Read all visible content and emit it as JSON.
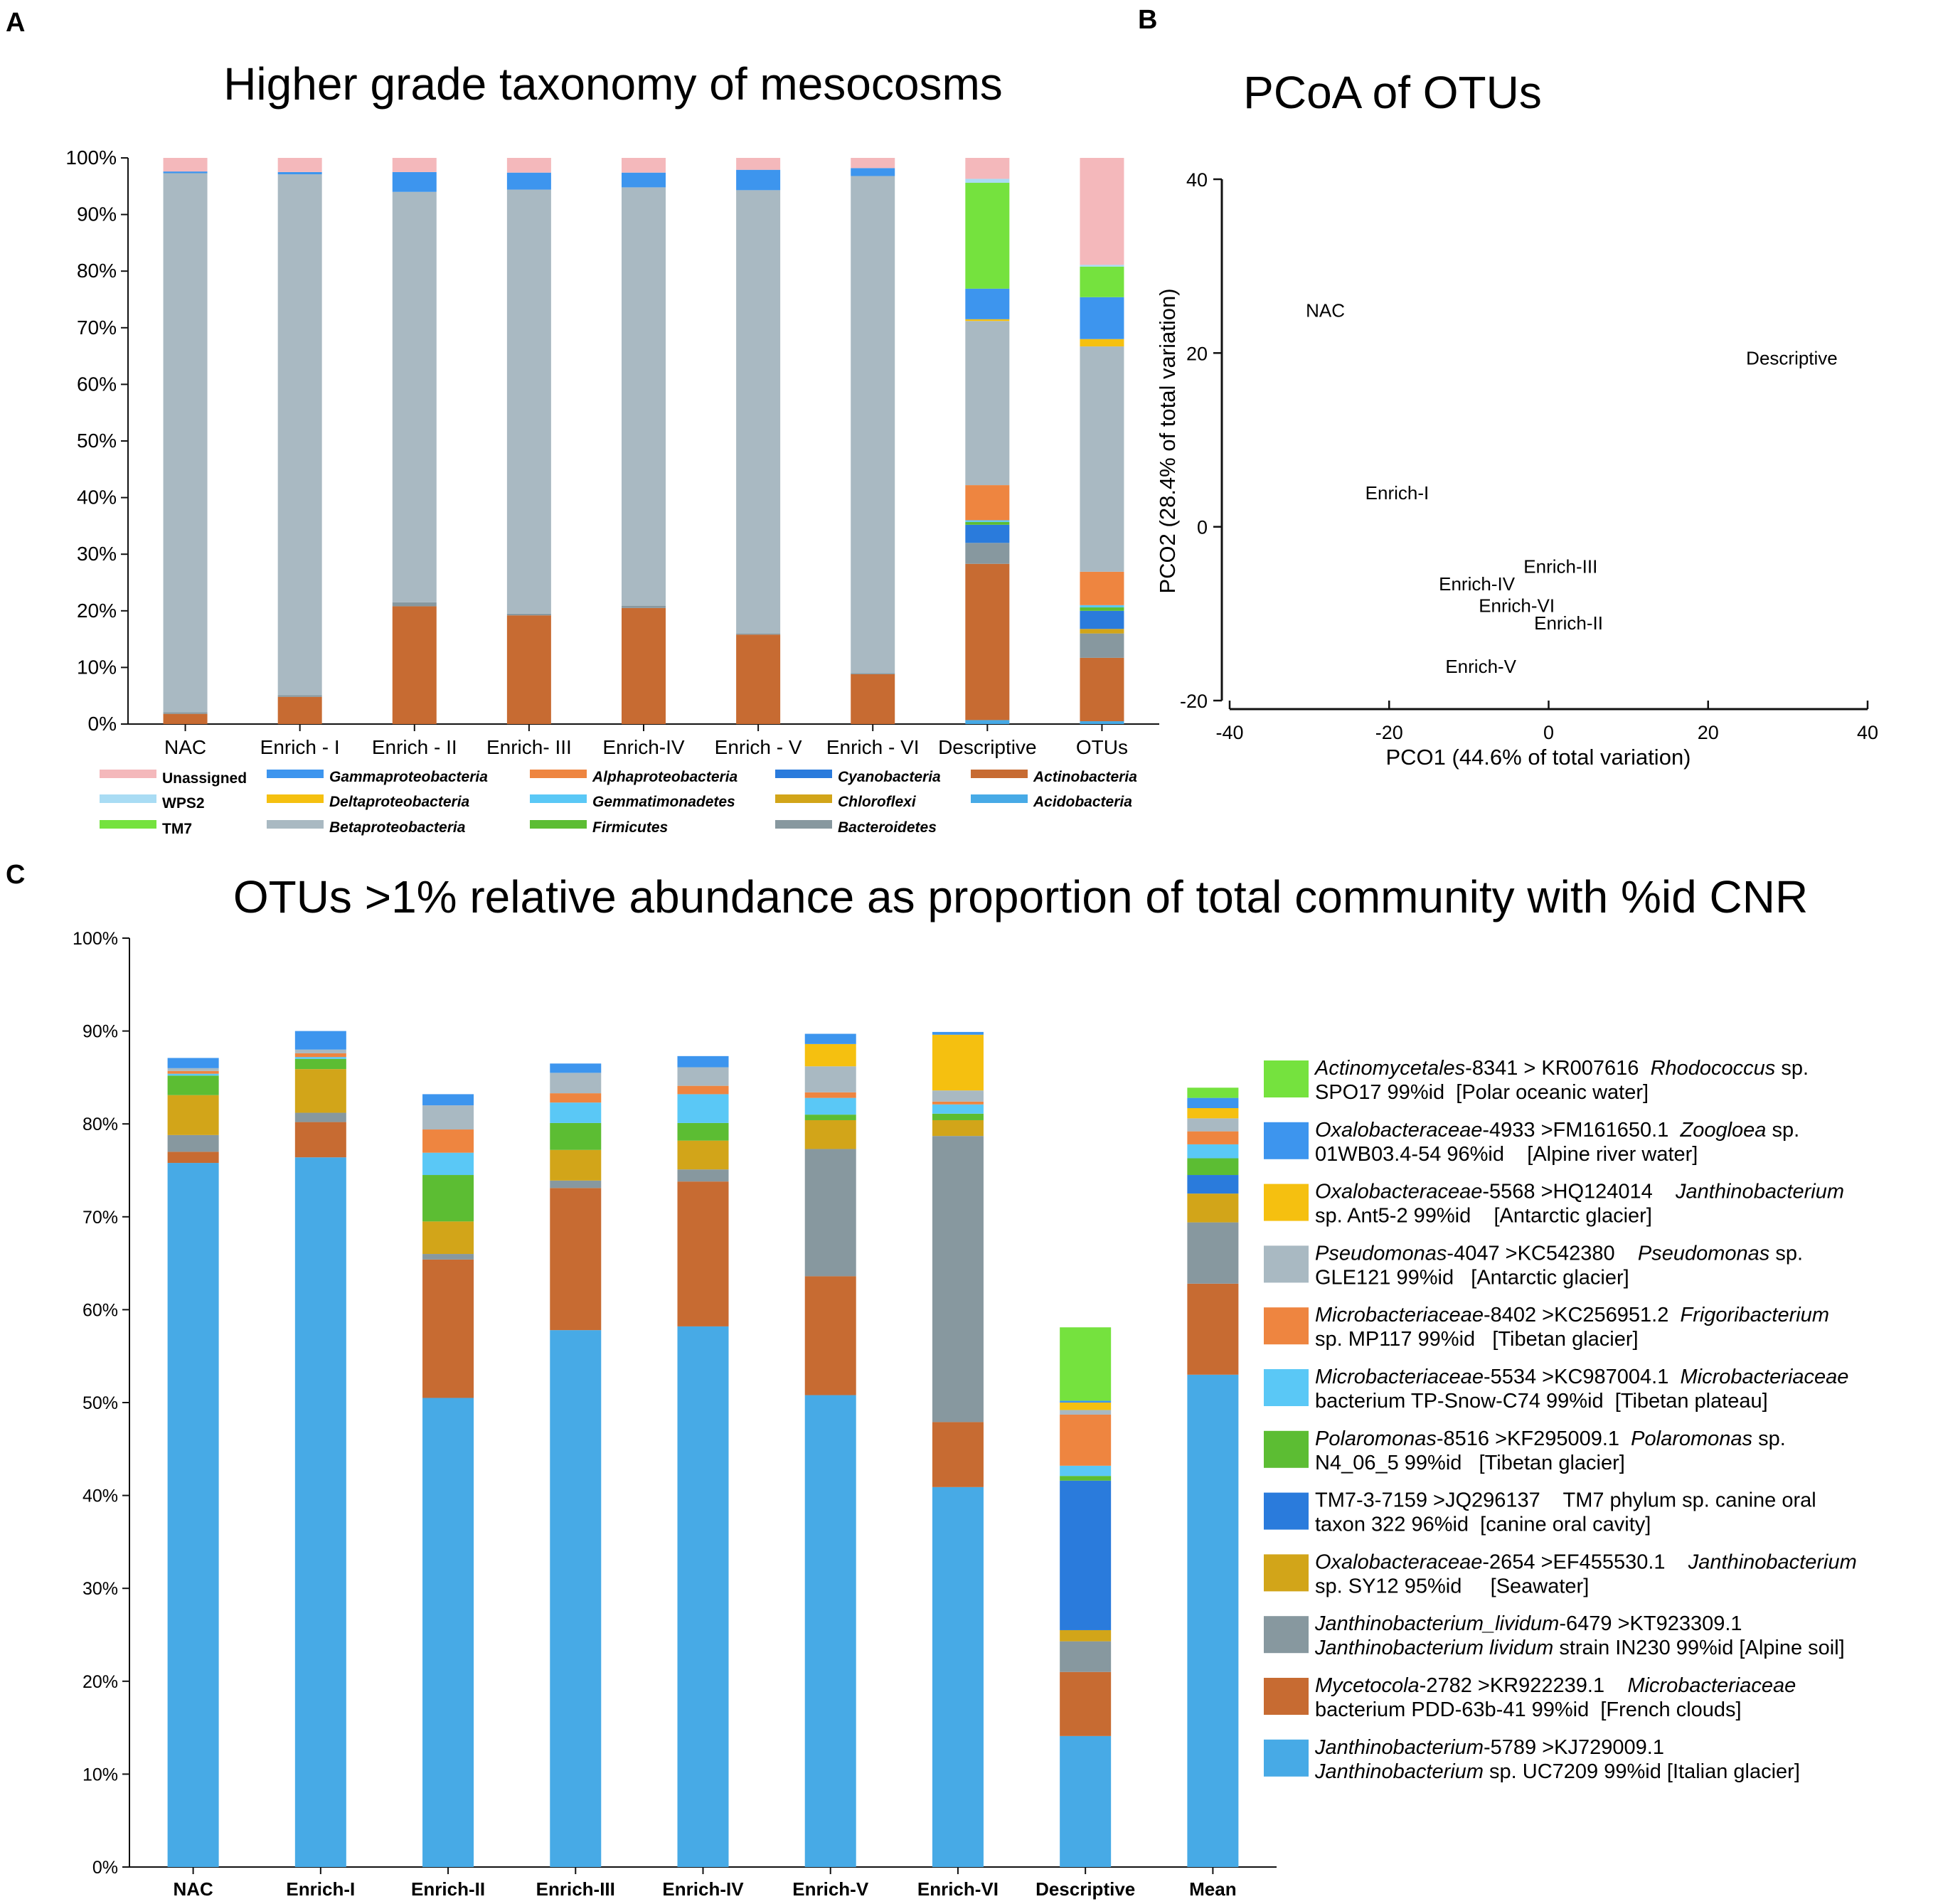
{
  "panel_letters": {
    "a": "A",
    "b": "B",
    "c": "C"
  },
  "colors": {
    "unassigned": "#f4b8bb",
    "wps2": "#a9dcf4",
    "tm7": "#75e23e",
    "gamma": "#3d95ee",
    "delta": "#f5c010",
    "beta": "#a9b9c2",
    "alpha": "#ee8540",
    "gemmat": "#5ac8f6",
    "firmicutes": "#5cbd33",
    "cyano": "#2a7bdc",
    "chloroflexi": "#d2a519",
    "bacteroidetes": "#87989f",
    "actino": "#c76b32",
    "acido": "#47aae6",
    "axis": "#111111"
  },
  "chart_data": [
    {
      "id": "panelA",
      "type": "bar",
      "stacked": true,
      "title": "Higher grade taxonomy of mesocosms",
      "xlabel": "",
      "ylabel": "",
      "ylim": [
        0,
        100
      ],
      "yticks": [
        "0%",
        "10%",
        "20%",
        "30%",
        "40%",
        "50%",
        "60%",
        "70%",
        "80%",
        "90%",
        "100%"
      ],
      "categories": [
        "NAC",
        "Enrich - I",
        "Enrich - II",
        "Enrich- III",
        "Enrich-IV",
        "Enrich - V",
        "Enrich - VI",
        "Descriptive",
        "OTUs"
      ],
      "series": [
        {
          "name": "Acidobacteria",
          "color": "acido",
          "values": [
            0,
            0,
            0,
            0,
            0,
            0,
            0,
            0.7,
            0.5
          ]
        },
        {
          "name": "Actinobacteria",
          "color": "actino",
          "values": [
            1.8,
            4.8,
            20.8,
            19.2,
            20.5,
            15.8,
            8.8,
            27.6,
            11.2
          ]
        },
        {
          "name": "Bacteroidetes",
          "color": "bacteroidetes",
          "values": [
            0.3,
            0.3,
            0.7,
            0.3,
            0.4,
            0.2,
            0.2,
            3.7,
            4.3
          ]
        },
        {
          "name": "Chloroflexi",
          "color": "chloroflexi",
          "values": [
            0,
            0,
            0,
            0,
            0,
            0,
            0,
            0,
            0.8
          ]
        },
        {
          "name": "Cyanobacteria",
          "color": "cyano",
          "values": [
            0,
            0,
            0,
            0,
            0,
            0,
            0,
            3.2,
            3.2
          ]
        },
        {
          "name": "Firmicutes",
          "color": "firmicutes",
          "values": [
            0,
            0,
            0,
            0,
            0,
            0,
            0,
            0.5,
            0.6
          ]
        },
        {
          "name": "Gemmatimonadetes",
          "color": "gemmat",
          "values": [
            0,
            0,
            0,
            0,
            0,
            0,
            0,
            0.3,
            0.4
          ]
        },
        {
          "name": "Alphaproteobacteria",
          "color": "alpha",
          "values": [
            0,
            0,
            0,
            0,
            0,
            0,
            0,
            6.2,
            5.9
          ]
        },
        {
          "name": "Betaproteobacteria",
          "color": "beta",
          "values": [
            95.2,
            92.0,
            72.5,
            74.9,
            73.9,
            78.3,
            87.8,
            29.0,
            39.8
          ]
        },
        {
          "name": "Deltaproteobacteria",
          "color": "delta",
          "values": [
            0,
            0,
            0,
            0,
            0,
            0,
            0,
            0.3,
            1.3
          ]
        },
        {
          "name": "Gammaproteobacteria",
          "color": "gamma",
          "values": [
            0.3,
            0.4,
            3.5,
            3.0,
            2.6,
            3.6,
            1.4,
            5.4,
            7.4
          ]
        },
        {
          "name": "TM7",
          "color": "tm7",
          "values": [
            0,
            0,
            0,
            0,
            0,
            0,
            0,
            18.7,
            5.4
          ]
        },
        {
          "name": "WPS2",
          "color": "wps2",
          "values": [
            0,
            0,
            0,
            0,
            0,
            0,
            0,
            0.7,
            0.3
          ]
        },
        {
          "name": "Unassigned",
          "color": "unassigned",
          "values": [
            2.4,
            2.5,
            2.5,
            2.6,
            2.6,
            2.1,
            1.8,
            3.7,
            18.9
          ]
        }
      ],
      "legend": [
        [
          "Unassigned",
          "Gammaproteobacteria",
          "Alphaproteobacteria",
          "Cyanobacteria",
          "Actinobacteria"
        ],
        [
          "WPS2",
          "Deltaproteobacteria",
          "Gemmatimonadetes",
          "Chloroflexi",
          "Acidobacteria"
        ],
        [
          "TM7",
          "Betaproteobacteria",
          "Firmicutes",
          "Bacteroidetes",
          ""
        ]
      ]
    },
    {
      "id": "panelB",
      "type": "scatter",
      "title": "PCoA of OTUs",
      "xlabel": "PCO1 (44.6% of total variation)",
      "ylabel": "PCO2 (28.4% of total variation)",
      "xlim": [
        -40,
        40
      ],
      "ylim": [
        -20,
        40
      ],
      "xticks": [
        -40,
        -20,
        0,
        20,
        40
      ],
      "yticks": [
        -20,
        0,
        20,
        40
      ],
      "points": [
        {
          "label": "NAC",
          "x": -28,
          "y": 25
        },
        {
          "label": "Descriptive",
          "x": 30.5,
          "y": 19.5
        },
        {
          "label": "Enrich-I",
          "x": -19,
          "y": 4
        },
        {
          "label": "Enrich-III",
          "x": 1.5,
          "y": -4.5
        },
        {
          "label": "Enrich-IV",
          "x": -9,
          "y": -6.5
        },
        {
          "label": "Enrich-VI",
          "x": -4,
          "y": -9
        },
        {
          "label": "Enrich-II",
          "x": 2.5,
          "y": -11
        },
        {
          "label": "Enrich-V",
          "x": -8.5,
          "y": -16
        }
      ]
    },
    {
      "id": "panelC",
      "type": "bar",
      "stacked": true,
      "title": "OTUs >1% relative abundance as proportion of total community with %id CNR",
      "xlabel": "",
      "ylabel": "",
      "ylim": [
        0,
        100
      ],
      "yticks": [
        "0%",
        "10%",
        "20%",
        "30%",
        "40%",
        "50%",
        "60%",
        "70%",
        "80%",
        "90%",
        "100%"
      ],
      "categories": [
        "NAC",
        "Enrich-I",
        "Enrich-II",
        "Enrich-III",
        "Enrich-IV",
        "Enrich-V",
        "Enrich-VI",
        "Descriptive",
        "Mean"
      ],
      "series": [
        {
          "name": "Janthinobacterium-5789",
          "color": "acido",
          "values": [
            75.8,
            76.4,
            50.5,
            57.8,
            58.2,
            50.8,
            40.9,
            14.1,
            53.0
          ]
        },
        {
          "name": "Mycetocola-2782",
          "color": "actino",
          "values": [
            1.2,
            3.8,
            14.9,
            15.3,
            15.6,
            12.8,
            7.0,
            6.9,
            9.8
          ]
        },
        {
          "name": "Janthinobacterium_lividum-6479",
          "color": "bacteroidetes",
          "values": [
            1.8,
            1.0,
            0.6,
            0.8,
            1.3,
            13.7,
            30.8,
            3.3,
            6.6
          ]
        },
        {
          "name": "Oxalobacteraceae-2654",
          "color": "chloroflexi",
          "values": [
            4.3,
            4.7,
            3.5,
            3.3,
            3.1,
            3.1,
            1.7,
            1.2,
            3.1
          ]
        },
        {
          "name": "TM7-3-7159",
          "color": "cyano",
          "values": [
            0,
            0,
            0,
            0,
            0,
            0,
            0,
            16.1,
            2.0
          ]
        },
        {
          "name": "Polaromonas-8516",
          "color": "firmicutes",
          "values": [
            2.1,
            1.1,
            5.0,
            2.9,
            1.9,
            0.6,
            0.7,
            0.5,
            1.8
          ]
        },
        {
          "name": "Microbacteriaceae-5534",
          "color": "gemmat",
          "values": [
            0.2,
            0.2,
            2.4,
            2.2,
            3.1,
            1.8,
            1.0,
            1.1,
            1.5
          ]
        },
        {
          "name": "Microbacteriaceae-8402",
          "color": "alpha",
          "values": [
            0.3,
            0.4,
            2.5,
            1.0,
            0.9,
            0.6,
            0.3,
            5.5,
            1.4
          ]
        },
        {
          "name": "Pseudomonas-4047",
          "color": "beta",
          "values": [
            0.3,
            0.4,
            2.6,
            2.2,
            2.0,
            2.8,
            1.2,
            0.5,
            1.4
          ]
        },
        {
          "name": "Oxalobacteraceae-5568",
          "color": "delta",
          "values": [
            0,
            0,
            0,
            0,
            0,
            2.4,
            6.0,
            0.8,
            1.1
          ]
        },
        {
          "name": "Oxalobacteraceae-4933",
          "color": "gamma",
          "values": [
            1.1,
            2.0,
            1.2,
            1.0,
            1.2,
            1.1,
            0.3,
            0.2,
            1.1
          ]
        },
        {
          "name": "Actinomycetales-8341",
          "color": "tm7",
          "values": [
            0,
            0,
            0,
            0,
            0,
            0,
            0,
            7.9,
            1.1
          ]
        }
      ],
      "legend": [
        {
          "color": "tm7",
          "line1": [
            [
              "Actinomycetales",
              true
            ],
            [
              "-8341 > KR007616  ",
              false
            ],
            [
              "Rhodococcus",
              true
            ],
            [
              " sp.",
              false
            ]
          ],
          "line2": [
            [
              "SPO17 99%id  [Polar oceanic water]",
              false
            ]
          ]
        },
        {
          "color": "gamma",
          "line1": [
            [
              "Oxalobacteraceae",
              true
            ],
            [
              "-4933 >FM161650.1  ",
              false
            ],
            [
              "Zoogloea",
              true
            ],
            [
              " sp.",
              false
            ]
          ],
          "line2": [
            [
              "01WB03.4-54 96%id    [Alpine river water]",
              false
            ]
          ]
        },
        {
          "color": "delta",
          "line1": [
            [
              "Oxalobacteraceae",
              true
            ],
            [
              "-5568 >HQ124014    ",
              false
            ],
            [
              "Janthinobacterium",
              true
            ]
          ],
          "line2": [
            [
              "sp. Ant5-2 99%id    [Antarctic glacier]",
              false
            ]
          ]
        },
        {
          "color": "beta",
          "line1": [
            [
              "Pseudomonas",
              true
            ],
            [
              "-4047 >KC542380    ",
              false
            ],
            [
              "Pseudomonas",
              true
            ],
            [
              " sp.",
              false
            ]
          ],
          "line2": [
            [
              "GLE121 99%id   [Antarctic glacier]",
              false
            ]
          ]
        },
        {
          "color": "alpha",
          "line1": [
            [
              "Microbacteriaceae",
              true
            ],
            [
              "-8402 >KC256951.2  ",
              false
            ],
            [
              "Frigoribacterium",
              true
            ]
          ],
          "line2": [
            [
              "sp. MP117 99%id   [Tibetan glacier]",
              false
            ]
          ]
        },
        {
          "color": "gemmat",
          "line1": [
            [
              "Microbacteriaceae",
              true
            ],
            [
              "-5534 >KC987004.1  ",
              false
            ],
            [
              "Microbacteriaceae",
              true
            ]
          ],
          "line2": [
            [
              "bacterium TP-Snow-C74 99%id  [Tibetan plateau]",
              false
            ]
          ]
        },
        {
          "color": "firmicutes",
          "line1": [
            [
              "Polaromonas",
              true
            ],
            [
              "-8516 >KF295009.1  ",
              false
            ],
            [
              "Polaromonas",
              true
            ],
            [
              " sp.",
              false
            ]
          ],
          "line2": [
            [
              "N4_06_5 99%id   [Tibetan glacier]",
              false
            ]
          ]
        },
        {
          "color": "cyano",
          "line1": [
            [
              "TM7-3-7159 >JQ296137    TM7 phylum sp. canine oral",
              false
            ]
          ],
          "line2": [
            [
              "taxon 322 96%id  [canine oral cavity]",
              false
            ]
          ]
        },
        {
          "color": "chloroflexi",
          "line1": [
            [
              "Oxalobacteraceae",
              true
            ],
            [
              "-2654 >EF455530.1    ",
              false
            ],
            [
              "Janthinobacterium",
              true
            ]
          ],
          "line2": [
            [
              "sp. SY12 95%id     [Seawater]",
              false
            ]
          ]
        },
        {
          "color": "bacteroidetes",
          "line1": [
            [
              "Janthinobacterium_lividum",
              true
            ],
            [
              "-6479 >KT923309.1",
              false
            ]
          ],
          "line2": [
            [
              "Janthinobacterium lividum",
              true
            ],
            [
              " strain IN230 99%id [Alpine soil]",
              false
            ]
          ]
        },
        {
          "color": "actino",
          "line1": [
            [
              "Mycetocola",
              true
            ],
            [
              "-2782 >KR922239.1    ",
              false
            ],
            [
              "Microbacteriaceae",
              true
            ]
          ],
          "line2": [
            [
              "bacterium PDD-63b-41 99%id  [French clouds]",
              false
            ]
          ]
        },
        {
          "color": "acido",
          "line1": [
            [
              "Janthinobacterium",
              true
            ],
            [
              "-5789 >KJ729009.1",
              false
            ]
          ],
          "line2": [
            [
              "Janthinobacterium",
              true
            ],
            [
              " sp. UC7209 99%id [Italian glacier]",
              false
            ]
          ]
        }
      ]
    }
  ]
}
